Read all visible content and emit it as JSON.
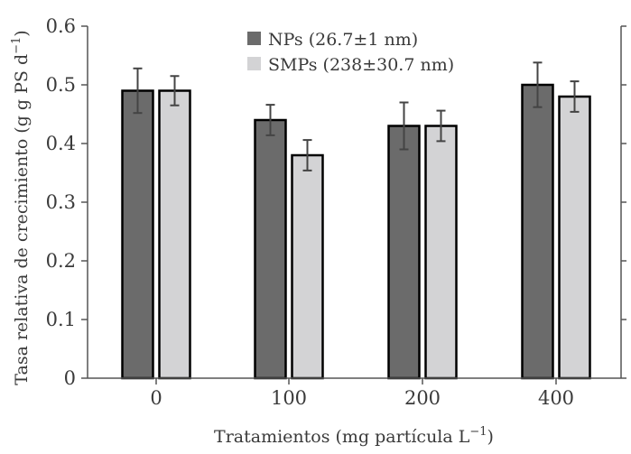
{
  "chart_data": {
    "type": "bar",
    "title": "",
    "xlabel": "Tratamientos (mg partícula L",
    "xlabel_sup": "−1",
    "xlabel_end": ")",
    "ylabel": "Tasa relativa de crecimiento (g g PS d",
    "ylabel_sup": "−1",
    "ylabel_end": ")",
    "ylim": [
      0,
      0.6
    ],
    "yticks": [
      "0",
      "0.1",
      "0.2",
      "0.3",
      "0.4",
      "0.5",
      "0.6"
    ],
    "categories": [
      "0",
      "100",
      "200",
      "400"
    ],
    "legend_position": "top-center",
    "series": [
      {
        "name": "NPs (26.7±1 nm)",
        "color": "#6b6b6b",
        "values": [
          0.49,
          0.44,
          0.43,
          0.5
        ],
        "errors": [
          0.038,
          0.026,
          0.04,
          0.038
        ]
      },
      {
        "name": "SMPs (238±30.7 nm)",
        "color": "#d3d3d5",
        "values": [
          0.49,
          0.38,
          0.43,
          0.48
        ],
        "errors": [
          0.025,
          0.026,
          0.026,
          0.026
        ]
      }
    ]
  }
}
